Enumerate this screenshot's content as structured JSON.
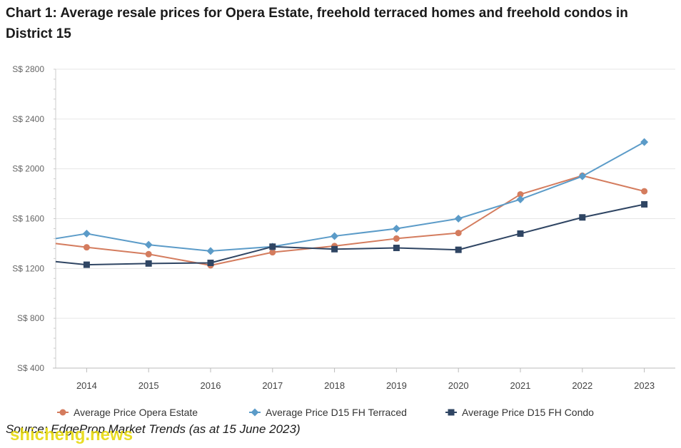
{
  "title": "Chart 1: Average resale prices for Opera Estate, freehold terraced homes and freehold condos in District 15",
  "source": "Source: EdgeProp Market Trends (as at 15 June 2023)",
  "watermark": "shicheng.news",
  "chart_data": {
    "type": "line",
    "title": "Chart 1: Average resale prices for Opera Estate, freehold terraced homes and freehold condos in District 15",
    "x": [
      2014,
      2015,
      2016,
      2017,
      2018,
      2019,
      2020,
      2021,
      2022,
      2023
    ],
    "x_tick_labels": [
      "2014",
      "2015",
      "2016",
      "2017",
      "2018",
      "2019",
      "2020",
      "2021",
      "2022",
      "2023"
    ],
    "xlim": [
      2013.5,
      2023.5
    ],
    "ylim": [
      400,
      2800
    ],
    "y_ticks": [
      400,
      800,
      1200,
      1600,
      2000,
      2400,
      2800
    ],
    "y_tick_labels": [
      "S$ 400",
      "S$ 800",
      "S$ 1200",
      "S$ 1600",
      "S$ 2000",
      "S$ 2400",
      "S$ 2800"
    ],
    "grid": "horizontal",
    "legend_position": "bottom",
    "series": [
      {
        "name": "Average Price Opera Estate",
        "marker": "circle",
        "color": "#d47c5e",
        "edge_start": 1400,
        "values": [
          1370,
          1315,
          1225,
          1330,
          1380,
          1440,
          1485,
          1795,
          1945,
          1820
        ]
      },
      {
        "name": "Average Price D15 FH Terraced",
        "marker": "diamond",
        "color": "#5b9bc8",
        "edge_start": 1440,
        "values": [
          1480,
          1390,
          1340,
          1375,
          1460,
          1520,
          1600,
          1755,
          1940,
          2215
        ]
      },
      {
        "name": "Average Price D15 FH Condo",
        "marker": "square",
        "color": "#2f4563",
        "edge_start": 1255,
        "values": [
          1230,
          1240,
          1245,
          1375,
          1355,
          1365,
          1350,
          1480,
          1610,
          1715
        ]
      }
    ]
  }
}
